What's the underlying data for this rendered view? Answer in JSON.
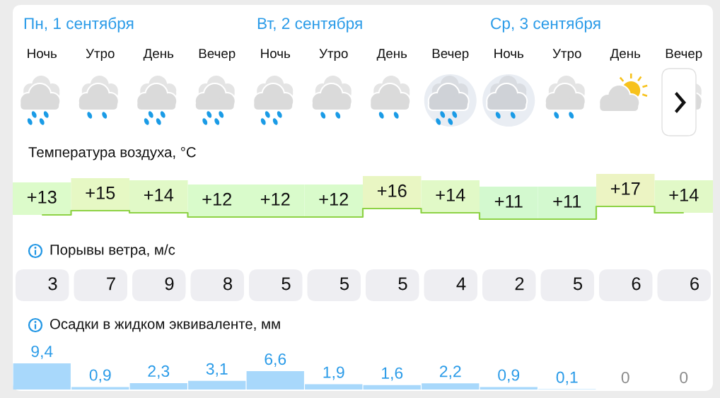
{
  "chart_data": [
    {
      "type": "step",
      "title": "Температура воздуха, °C",
      "annotations": [
        "Пн, 1 сентября",
        "Вт, 2 сентября",
        "Ср, 3 сентября"
      ],
      "categories": [
        "Ночь",
        "Утро",
        "День",
        "Вечер",
        "Ночь",
        "Утро",
        "День",
        "Вечер",
        "Ночь",
        "Утро",
        "День",
        "Вечер"
      ],
      "values": [
        13,
        15,
        14,
        12,
        12,
        12,
        16,
        14,
        11,
        11,
        17,
        14
      ],
      "value_labels": [
        "+13",
        "+15",
        "+14",
        "+12",
        "+12",
        "+12",
        "+16",
        "+14",
        "+11",
        "+11",
        "+17",
        "+14"
      ],
      "color": "#8ed246",
      "colors": [
        "#dcfbca",
        "#e6f8c4",
        "#e1f9c7",
        "#d9fbcb",
        "#d9fbcb",
        "#d9fbcb",
        "#e9f6c3",
        "#e1f9c7",
        "#d3f9cf",
        "#d3f9cf",
        "#ecf4c3",
        "#e1f9c7"
      ],
      "tick_labels": "x"
    },
    {
      "type": "other",
      "title": "Порывы ветра, м/с",
      "values": [
        3,
        7,
        9,
        8,
        5,
        5,
        5,
        4,
        2,
        5,
        6,
        6
      ],
      "data_labels": true,
      "color": "#eeeef2"
    },
    {
      "type": "bar",
      "title": "Осадки в жидком эквиваленте, мм",
      "categories": [
        null,
        null,
        null,
        null,
        null,
        null,
        null,
        null,
        null,
        null,
        null,
        null
      ],
      "values": [
        9.4,
        0.9,
        2.3,
        3.1,
        6.6,
        1.9,
        1.6,
        2.2,
        0.9,
        0.1,
        0,
        0
      ],
      "value_labels": [
        "9,4",
        "0,9",
        "2,3",
        "3,1",
        "6,6",
        "1,9",
        "1,6",
        "2,2",
        "0,9",
        "0,1",
        "0",
        "0"
      ],
      "color": "#a8d8fb"
    }
  ]
}
